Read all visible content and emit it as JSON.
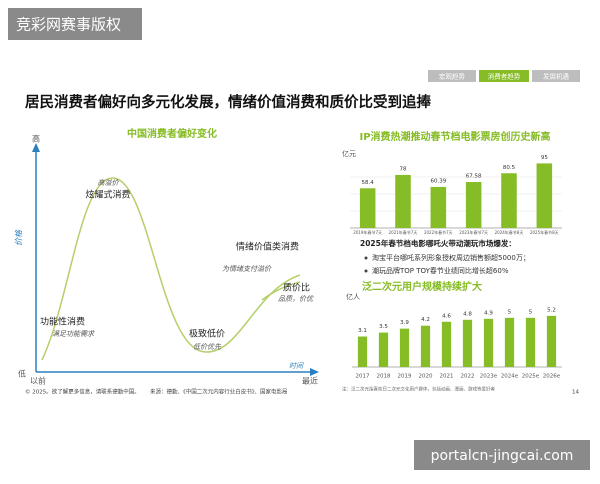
{
  "watermark_top": "竞彩网赛事版权",
  "tabs": [
    "宏观趋势",
    "消费者趋势",
    "发展机遇"
  ],
  "title": "居民消费者偏好向多元化发展，情绪价值消费和质价比受到追捧",
  "preference_chart": {
    "title": "中国消费者偏好变化",
    "y_high": "高",
    "y_low": "低",
    "y_label": "价格",
    "x_label": "时间",
    "x_start": "以前",
    "x_end": "最近",
    "stages": [
      {
        "label": "功能性消费",
        "note": "满足功能需求"
      },
      {
        "label": "炫耀式消费",
        "note": "高溢价"
      },
      {
        "label": "极致低价",
        "note": "低价优先"
      },
      {
        "label": "情绪价值类消费",
        "note": "为情绪支付溢价"
      },
      {
        "label": "质价比",
        "note": "品质，价优"
      }
    ]
  },
  "chart_data": [
    {
      "type": "bar",
      "title": "IP消费热潮推动春节档电影票房创历史新高",
      "unit": "亿元",
      "categories": [
        "2019年春节7天",
        "2021年春节7天",
        "2022年春节7天",
        "2023年春节7天",
        "2024年春节8天",
        "2025年春节8天"
      ],
      "values": [
        58.4,
        78,
        60.39,
        67.58,
        80.5,
        95
      ],
      "color": "#86bc25",
      "ylim": [
        0,
        100
      ]
    },
    {
      "type": "bar",
      "title": "泛二次元用户规模持续扩大",
      "unit": "亿人",
      "categories": [
        "2017",
        "2018",
        "2019",
        "2020",
        "2021",
        "2022",
        "2023e",
        "2024e",
        "2025e",
        "2026e"
      ],
      "values": [
        3.1,
        3.5,
        3.9,
        4.2,
        4.6,
        4.8,
        4.9,
        5,
        5,
        5.2
      ],
      "color": "#86bc25",
      "ylim": [
        0,
        6
      ]
    }
  ],
  "bullets": {
    "heading": "2025年春节档电影哪吒火带动潮玩市场爆发：",
    "items": [
      "淘宝平台哪吒系列形象授权周边销售额超5000万；",
      "潮玩品牌TOP TOY春节业绩同比增长超60%"
    ]
  },
  "footnote": "注：泛二次元指喜欢日二次元文化用户群体，包括动画、漫画、游戏等爱好者",
  "footer": "© 2025。欲了解更多信息，请联系德勤中国。",
  "source": "来源：德勤、《中国二次元内容行业白皮书》、国家电影局",
  "page_number": "14",
  "watermark_bottom": "portalcn-jingcai.com"
}
